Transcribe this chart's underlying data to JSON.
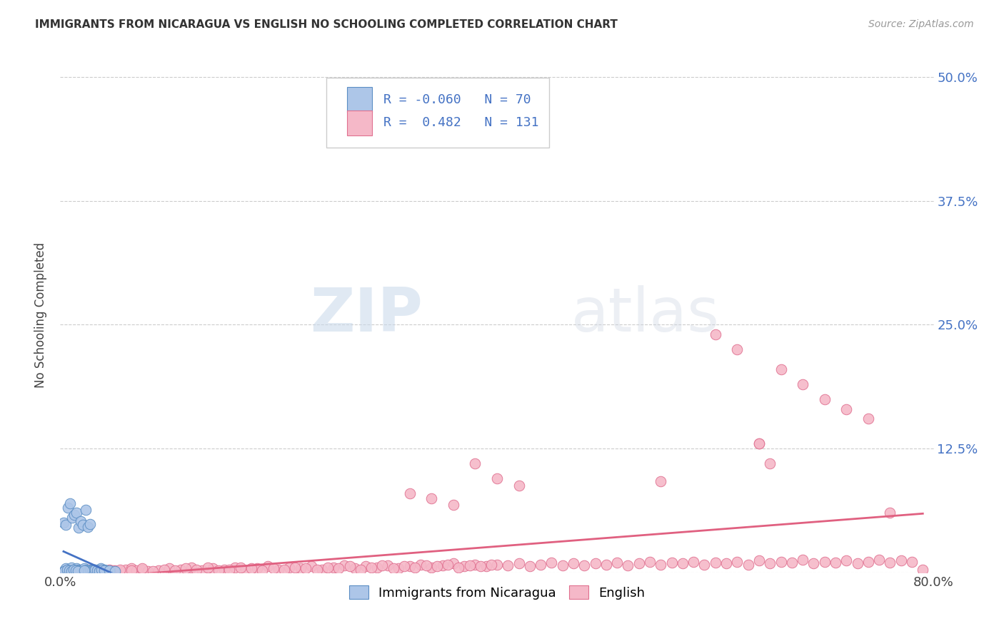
{
  "title": "IMMIGRANTS FROM NICARAGUA VS ENGLISH NO SCHOOLING COMPLETED CORRELATION CHART",
  "source": "Source: ZipAtlas.com",
  "ylabel": "No Schooling Completed",
  "xlim": [
    0.0,
    0.8
  ],
  "ylim": [
    0.0,
    0.52
  ],
  "yticks": [
    0.0,
    0.125,
    0.25,
    0.375,
    0.5
  ],
  "ytick_labels": [
    "",
    "12.5%",
    "25.0%",
    "37.5%",
    "50.0%"
  ],
  "xticks": [
    0.0,
    0.8
  ],
  "xtick_labels": [
    "0.0%",
    "80.0%"
  ],
  "blue_R": -0.06,
  "blue_N": 70,
  "pink_R": 0.482,
  "pink_N": 131,
  "blue_color": "#adc6e8",
  "pink_color": "#f5b8c8",
  "blue_edge_color": "#5b8ec4",
  "pink_edge_color": "#e07090",
  "blue_line_color": "#4472c4",
  "pink_line_color": "#e06080",
  "legend_label_blue": "Immigrants from Nicaragua",
  "legend_label_pink": "English",
  "watermark_zip": "ZIP",
  "watermark_atlas": "atlas",
  "background_color": "#ffffff",
  "blue_scatter_x": [
    0.004,
    0.005,
    0.006,
    0.007,
    0.008,
    0.009,
    0.01,
    0.01,
    0.011,
    0.012,
    0.013,
    0.014,
    0.015,
    0.016,
    0.017,
    0.018,
    0.019,
    0.02,
    0.021,
    0.022,
    0.023,
    0.024,
    0.025,
    0.026,
    0.027,
    0.028,
    0.029,
    0.03,
    0.031,
    0.032,
    0.033,
    0.034,
    0.035,
    0.036,
    0.037,
    0.038,
    0.039,
    0.04,
    0.041,
    0.042,
    0.003,
    0.005,
    0.007,
    0.009,
    0.011,
    0.013,
    0.015,
    0.017,
    0.019,
    0.021,
    0.023,
    0.025,
    0.027,
    0.029,
    0.03,
    0.032,
    0.034,
    0.036,
    0.038,
    0.04,
    0.004,
    0.006,
    0.008,
    0.01,
    0.012,
    0.014,
    0.016,
    0.022,
    0.045,
    0.05
  ],
  "blue_scatter_y": [
    0.002,
    0.004,
    0.001,
    0.003,
    0.002,
    0.001,
    0.003,
    0.005,
    0.002,
    0.001,
    0.003,
    0.002,
    0.004,
    0.001,
    0.003,
    0.002,
    0.001,
    0.003,
    0.002,
    0.004,
    0.001,
    0.003,
    0.002,
    0.001,
    0.003,
    0.002,
    0.001,
    0.002,
    0.003,
    0.001,
    0.002,
    0.001,
    0.003,
    0.002,
    0.004,
    0.001,
    0.002,
    0.003,
    0.001,
    0.002,
    0.05,
    0.048,
    0.065,
    0.07,
    0.055,
    0.058,
    0.06,
    0.045,
    0.052,
    0.048,
    0.063,
    0.046,
    0.049,
    0.002,
    0.001,
    0.003,
    0.002,
    0.001,
    0.003,
    0.002,
    0.001,
    0.003,
    0.002,
    0.001,
    0.003,
    0.002,
    0.001,
    0.002,
    0.002,
    0.001
  ],
  "pink_scatter_x": [
    0.005,
    0.01,
    0.015,
    0.02,
    0.025,
    0.03,
    0.035,
    0.04,
    0.045,
    0.05,
    0.055,
    0.06,
    0.065,
    0.07,
    0.075,
    0.08,
    0.09,
    0.1,
    0.11,
    0.12,
    0.13,
    0.14,
    0.15,
    0.16,
    0.17,
    0.18,
    0.19,
    0.2,
    0.21,
    0.22,
    0.23,
    0.24,
    0.25,
    0.26,
    0.27,
    0.28,
    0.29,
    0.3,
    0.31,
    0.32,
    0.33,
    0.34,
    0.35,
    0.36,
    0.37,
    0.38,
    0.39,
    0.4,
    0.41,
    0.42,
    0.43,
    0.44,
    0.45,
    0.46,
    0.47,
    0.48,
    0.49,
    0.5,
    0.51,
    0.52,
    0.53,
    0.54,
    0.55,
    0.56,
    0.57,
    0.58,
    0.59,
    0.6,
    0.61,
    0.62,
    0.63,
    0.64,
    0.65,
    0.66,
    0.67,
    0.68,
    0.69,
    0.7,
    0.71,
    0.72,
    0.73,
    0.74,
    0.75,
    0.76,
    0.77,
    0.78,
    0.79,
    0.008,
    0.012,
    0.018,
    0.025,
    0.032,
    0.04,
    0.048,
    0.055,
    0.065,
    0.075,
    0.085,
    0.095,
    0.105,
    0.115,
    0.125,
    0.135,
    0.145,
    0.155,
    0.165,
    0.175,
    0.185,
    0.195,
    0.205,
    0.215,
    0.225,
    0.235,
    0.245,
    0.255,
    0.265,
    0.275,
    0.285,
    0.295,
    0.305,
    0.315,
    0.325,
    0.335,
    0.345,
    0.355,
    0.365,
    0.375,
    0.385,
    0.395,
    0.64,
    0.65
  ],
  "pink_scatter_y": [
    0.002,
    0.001,
    0.003,
    0.002,
    0.001,
    0.003,
    0.002,
    0.001,
    0.003,
    0.002,
    0.001,
    0.003,
    0.004,
    0.002,
    0.003,
    0.001,
    0.002,
    0.004,
    0.003,
    0.005,
    0.002,
    0.004,
    0.003,
    0.005,
    0.002,
    0.004,
    0.006,
    0.003,
    0.005,
    0.004,
    0.006,
    0.003,
    0.005,
    0.007,
    0.004,
    0.006,
    0.005,
    0.007,
    0.004,
    0.006,
    0.008,
    0.005,
    0.007,
    0.009,
    0.006,
    0.008,
    0.006,
    0.008,
    0.007,
    0.009,
    0.006,
    0.008,
    0.01,
    0.007,
    0.009,
    0.007,
    0.009,
    0.008,
    0.01,
    0.007,
    0.009,
    0.011,
    0.008,
    0.01,
    0.009,
    0.011,
    0.008,
    0.01,
    0.009,
    0.011,
    0.008,
    0.012,
    0.009,
    0.011,
    0.01,
    0.013,
    0.009,
    0.011,
    0.01,
    0.012,
    0.009,
    0.011,
    0.013,
    0.01,
    0.012,
    0.011,
    0.003,
    0.001,
    0.002,
    0.001,
    0.003,
    0.002,
    0.001,
    0.002,
    0.003,
    0.002,
    0.004,
    0.001,
    0.003,
    0.002,
    0.004,
    0.003,
    0.005,
    0.002,
    0.003,
    0.005,
    0.004,
    0.002,
    0.004,
    0.003,
    0.005,
    0.004,
    0.003,
    0.005,
    0.004,
    0.006,
    0.003,
    0.005,
    0.007,
    0.004,
    0.006,
    0.005,
    0.007,
    0.006,
    0.008,
    0.005,
    0.007,
    0.006,
    0.008,
    0.13,
    0.11
  ],
  "pink_outliers_x": [
    0.38,
    0.4,
    0.42,
    0.32,
    0.34,
    0.36,
    0.55,
    0.6,
    0.62,
    0.64,
    0.66,
    0.68,
    0.7,
    0.72,
    0.74,
    0.76
  ],
  "pink_outliers_y": [
    0.11,
    0.095,
    0.088,
    0.08,
    0.075,
    0.068,
    0.092,
    0.24,
    0.225,
    0.13,
    0.205,
    0.19,
    0.175,
    0.165,
    0.155,
    0.06
  ]
}
